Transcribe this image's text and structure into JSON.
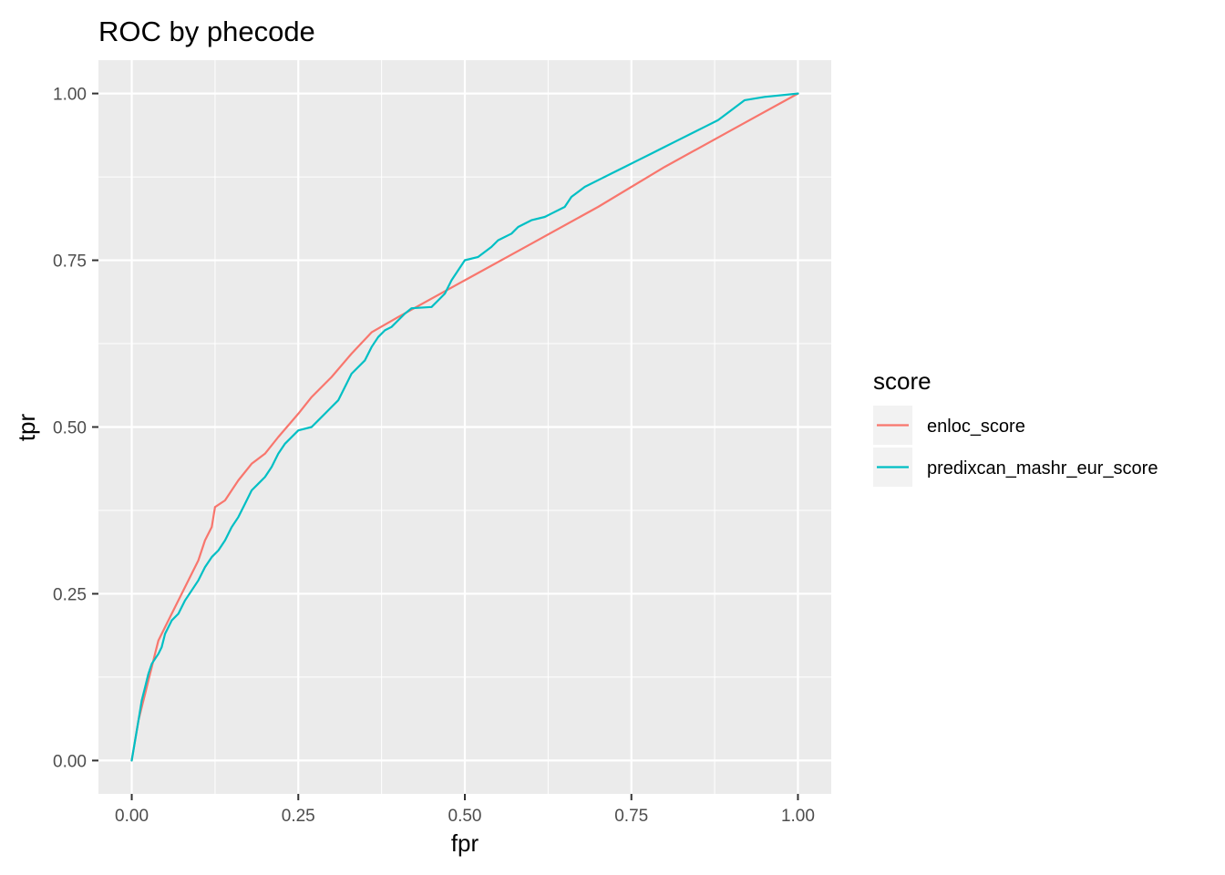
{
  "chart_data": {
    "type": "line",
    "title": "ROC by phecode",
    "xlabel": "fpr",
    "ylabel": "tpr",
    "xlim": [
      -0.05,
      1.05
    ],
    "ylim": [
      -0.05,
      1.05
    ],
    "x_ticks": [
      0.0,
      0.25,
      0.5,
      0.75,
      1.0
    ],
    "y_ticks": [
      0.0,
      0.25,
      0.5,
      0.75,
      1.0
    ],
    "x_tick_labels": [
      "0.00",
      "0.25",
      "0.50",
      "0.75",
      "1.00"
    ],
    "y_tick_labels": [
      "0.00",
      "0.25",
      "0.50",
      "0.75",
      "1.00"
    ],
    "grid": true,
    "legend": {
      "title": "score",
      "position": "right"
    },
    "series": [
      {
        "name": "enloc_score",
        "color": "#F8766D",
        "points": [
          [
            0.0,
            0.0
          ],
          [
            0.005,
            0.03
          ],
          [
            0.01,
            0.06
          ],
          [
            0.015,
            0.08
          ],
          [
            0.02,
            0.1
          ],
          [
            0.025,
            0.12
          ],
          [
            0.03,
            0.14
          ],
          [
            0.035,
            0.16
          ],
          [
            0.04,
            0.18
          ],
          [
            0.05,
            0.2
          ],
          [
            0.06,
            0.22
          ],
          [
            0.07,
            0.24
          ],
          [
            0.08,
            0.26
          ],
          [
            0.09,
            0.28
          ],
          [
            0.1,
            0.3
          ],
          [
            0.11,
            0.33
          ],
          [
            0.12,
            0.35
          ],
          [
            0.125,
            0.38
          ],
          [
            0.14,
            0.39
          ],
          [
            0.16,
            0.42
          ],
          [
            0.18,
            0.445
          ],
          [
            0.2,
            0.46
          ],
          [
            0.22,
            0.485
          ],
          [
            0.25,
            0.52
          ],
          [
            0.27,
            0.545
          ],
          [
            0.3,
            0.575
          ],
          [
            0.33,
            0.61
          ],
          [
            0.36,
            0.642
          ],
          [
            0.4,
            0.665
          ],
          [
            0.5,
            0.72
          ],
          [
            0.6,
            0.775
          ],
          [
            0.7,
            0.83
          ],
          [
            0.8,
            0.89
          ],
          [
            0.9,
            0.945
          ],
          [
            1.0,
            1.0
          ]
        ]
      },
      {
        "name": "predixcan_mashr_eur_score",
        "color": "#00BFC4",
        "points": [
          [
            0.0,
            0.0
          ],
          [
            0.005,
            0.03
          ],
          [
            0.01,
            0.06
          ],
          [
            0.015,
            0.09
          ],
          [
            0.02,
            0.11
          ],
          [
            0.025,
            0.13
          ],
          [
            0.03,
            0.145
          ],
          [
            0.04,
            0.16
          ],
          [
            0.045,
            0.17
          ],
          [
            0.05,
            0.19
          ],
          [
            0.06,
            0.21
          ],
          [
            0.07,
            0.22
          ],
          [
            0.08,
            0.24
          ],
          [
            0.09,
            0.255
          ],
          [
            0.1,
            0.27
          ],
          [
            0.11,
            0.29
          ],
          [
            0.12,
            0.305
          ],
          [
            0.13,
            0.315
          ],
          [
            0.14,
            0.33
          ],
          [
            0.15,
            0.35
          ],
          [
            0.16,
            0.365
          ],
          [
            0.17,
            0.385
          ],
          [
            0.18,
            0.405
          ],
          [
            0.19,
            0.415
          ],
          [
            0.2,
            0.425
          ],
          [
            0.21,
            0.44
          ],
          [
            0.22,
            0.46
          ],
          [
            0.23,
            0.475
          ],
          [
            0.24,
            0.485
          ],
          [
            0.25,
            0.495
          ],
          [
            0.27,
            0.5
          ],
          [
            0.28,
            0.51
          ],
          [
            0.29,
            0.52
          ],
          [
            0.3,
            0.53
          ],
          [
            0.31,
            0.54
          ],
          [
            0.32,
            0.56
          ],
          [
            0.33,
            0.58
          ],
          [
            0.34,
            0.59
          ],
          [
            0.35,
            0.6
          ],
          [
            0.36,
            0.62
          ],
          [
            0.37,
            0.635
          ],
          [
            0.38,
            0.645
          ],
          [
            0.39,
            0.65
          ],
          [
            0.4,
            0.66
          ],
          [
            0.41,
            0.67
          ],
          [
            0.42,
            0.678
          ],
          [
            0.45,
            0.68
          ],
          [
            0.46,
            0.69
          ],
          [
            0.47,
            0.7
          ],
          [
            0.48,
            0.72
          ],
          [
            0.49,
            0.735
          ],
          [
            0.5,
            0.75
          ],
          [
            0.52,
            0.755
          ],
          [
            0.54,
            0.77
          ],
          [
            0.55,
            0.78
          ],
          [
            0.57,
            0.79
          ],
          [
            0.58,
            0.8
          ],
          [
            0.6,
            0.81
          ],
          [
            0.62,
            0.815
          ],
          [
            0.63,
            0.82
          ],
          [
            0.65,
            0.83
          ],
          [
            0.66,
            0.845
          ],
          [
            0.68,
            0.86
          ],
          [
            0.7,
            0.87
          ],
          [
            0.72,
            0.88
          ],
          [
            0.74,
            0.89
          ],
          [
            0.76,
            0.9
          ],
          [
            0.78,
            0.91
          ],
          [
            0.8,
            0.92
          ],
          [
            0.82,
            0.93
          ],
          [
            0.84,
            0.94
          ],
          [
            0.86,
            0.95
          ],
          [
            0.88,
            0.96
          ],
          [
            0.9,
            0.975
          ],
          [
            0.92,
            0.99
          ],
          [
            0.95,
            0.995
          ],
          [
            1.0,
            1.0
          ]
        ]
      }
    ]
  }
}
